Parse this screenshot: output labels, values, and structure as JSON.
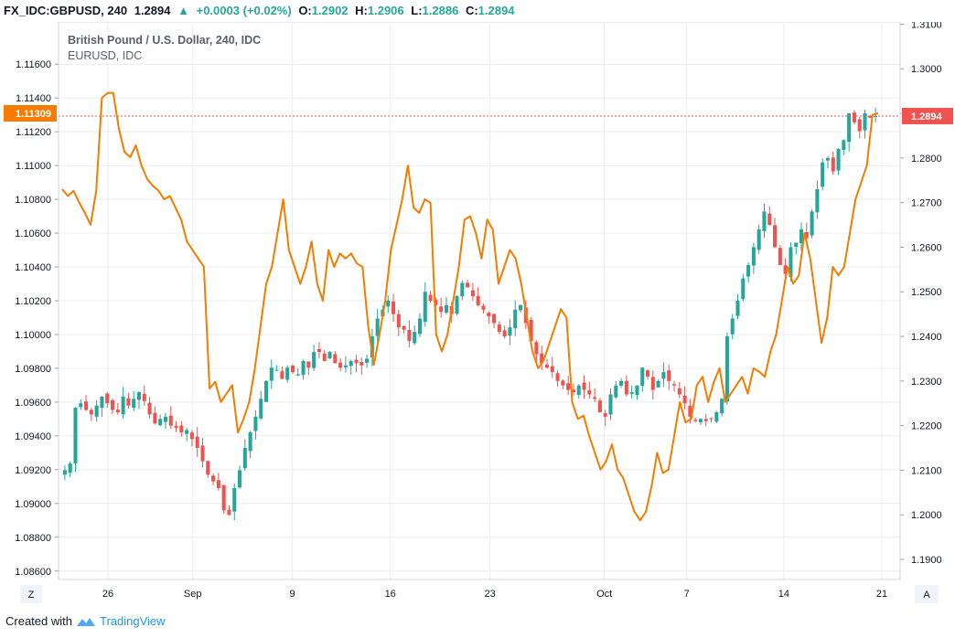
{
  "header": {
    "symbol": "FX_IDC:GBPUSD, 240",
    "last": "1.2894",
    "change": "+0.0003 (+0.02%)",
    "o_label": "O:",
    "o_value": "1.2902",
    "h_label": "H:",
    "h_value": "1.2906",
    "l_label": "L:",
    "l_value": "1.2886",
    "c_label": "C:",
    "c_value": "1.2894"
  },
  "legend": {
    "line1": "British Pound / U.S. Dollar, 240, IDC",
    "line2": "EURUSD, IDC"
  },
  "footer": {
    "created_with": "Created with",
    "brand": "TradingView"
  },
  "axis_buttons": {
    "left": "Z",
    "right": "A"
  },
  "colors": {
    "up": "#26a69a",
    "down": "#ef5350",
    "overlay": "#f57c00",
    "grid": "#e9ecef",
    "price_line": "#ef5350",
    "left_badge": "#f57c00",
    "right_badge": "#ef5350"
  },
  "chart_data": {
    "type": "candlestick",
    "title": "British Pound / U.S. Dollar, 240, IDC",
    "x_ticks": [
      {
        "label": "26",
        "t": 0.06
      },
      {
        "label": "Sep",
        "t": 0.163
      },
      {
        "label": "9",
        "t": 0.284
      },
      {
        "label": "16",
        "t": 0.403
      },
      {
        "label": "23",
        "t": 0.524
      },
      {
        "label": "Oct",
        "t": 0.663
      },
      {
        "label": "7",
        "t": 0.763
      },
      {
        "label": "14",
        "t": 0.881
      },
      {
        "label": "21",
        "t": 1.0
      }
    ],
    "left_axis": {
      "series": "EURUSD",
      "range": [
        1.0855,
        1.1185
      ],
      "ticks": [
        "1.11600",
        "1.11400",
        "1.11200",
        "1.11000",
        "1.10800",
        "1.10600",
        "1.10400",
        "1.10200",
        "1.10000",
        "1.09800",
        "1.09600",
        "1.09400",
        "1.09200",
        "1.09000",
        "1.08800",
        "1.08600"
      ],
      "last_value": "1.11309",
      "last": 1.11309
    },
    "right_axis": {
      "series": "GBPUSD",
      "range": [
        1.1855,
        1.3105
      ],
      "ticks": [
        "1.3100",
        "1.3000",
        "1.2900",
        "1.2800",
        "1.2700",
        "1.2600",
        "1.2500",
        "1.2400",
        "1.2300",
        "1.2200",
        "1.2100",
        "1.2000",
        "1.1900"
      ],
      "last_value": "1.2894",
      "last": 1.2894
    },
    "gbpusd_close_path": [
      1.21,
      1.2115,
      1.224,
      1.225,
      1.2235,
      1.2225,
      1.2245,
      1.2265,
      1.225,
      1.2235,
      1.223,
      1.2265,
      1.2245,
      1.226,
      1.2275,
      1.2255,
      1.2225,
      1.2205,
      1.2215,
      1.222,
      1.22,
      1.2195,
      1.2185,
      1.219,
      1.217,
      1.215,
      1.212,
      1.209,
      1.2075,
      1.206,
      1.201,
      1.2,
      1.206,
      1.21,
      1.215,
      1.2185,
      1.222,
      1.226,
      1.23,
      1.233,
      1.2325,
      1.2305,
      1.233,
      1.232,
      1.2315,
      1.2345,
      1.233,
      1.2365,
      1.2365,
      1.2345,
      1.2365,
      1.234,
      1.233,
      1.2335,
      1.2345,
      1.234,
      1.2335,
      1.235,
      1.24,
      1.244,
      1.246,
      1.248,
      1.245,
      1.242,
      1.2415,
      1.239,
      1.241,
      1.244,
      1.25,
      1.248,
      1.247,
      1.2455,
      1.247,
      1.245,
      1.249,
      1.252,
      1.251,
      1.249,
      1.247,
      1.246,
      1.2445,
      1.243,
      1.241,
      1.24,
      1.242,
      1.246,
      1.247,
      1.243,
      1.239,
      1.236,
      1.234,
      1.233,
      1.232,
      1.23,
      1.229,
      1.228,
      1.2275,
      1.229,
      1.228,
      1.227,
      1.226,
      1.223,
      1.222,
      1.227,
      1.229,
      1.23,
      1.227,
      1.2275,
      1.229,
      1.233,
      1.231,
      1.228,
      1.23,
      1.232,
      1.23,
      1.229,
      1.227,
      1.225,
      1.222,
      1.221,
      1.2215,
      1.221,
      1.2215,
      1.223,
      1.226,
      1.24,
      1.244,
      1.248,
      1.253,
      1.256,
      1.26,
      1.264,
      1.268,
      1.265,
      1.26,
      1.256,
      1.254,
      1.26,
      1.261,
      1.264,
      1.262,
      1.268,
      1.273,
      1.279,
      1.28,
      1.277,
      1.282,
      1.284,
      1.29,
      1.288,
      1.286,
      1.29,
      1.289,
      1.2894
    ],
    "eurusd_path": [
      1.1086,
      1.1082,
      1.1085,
      1.1078,
      1.1072,
      1.1065,
      1.1085,
      1.114,
      1.1143,
      1.1143,
      1.1122,
      1.1108,
      1.1105,
      1.1112,
      1.11,
      1.1092,
      1.1088,
      1.1085,
      1.108,
      1.1082,
      1.1075,
      1.1068,
      1.1055,
      1.105,
      1.1045,
      1.104,
      1.0968,
      1.0972,
      1.096,
      1.0965,
      1.097,
      1.0942,
      1.095,
      1.096,
      1.098,
      1.1005,
      1.103,
      1.104,
      1.106,
      1.108,
      1.105,
      1.104,
      1.103,
      1.104,
      1.1055,
      1.103,
      1.102,
      1.105,
      1.104,
      1.1048,
      1.1045,
      1.1048,
      1.1042,
      1.104,
      1.1005,
      1.0982,
      1.1,
      1.102,
      1.105,
      1.1065,
      1.108,
      1.11,
      1.1075,
      1.1072,
      1.108,
      1.1078,
      1.1,
      1.099,
      1.1,
      1.102,
      1.104,
      1.1068,
      1.107,
      1.106,
      1.1045,
      1.1068,
      1.1062,
      1.103,
      1.104,
      1.105,
      1.1045,
      1.103,
      1.101,
      1.099,
      1.098,
      1.0985,
      1.0995,
      1.1005,
      1.1015,
      1.101,
      1.096,
      1.095,
      1.0952,
      1.094,
      1.093,
      1.092,
      1.0925,
      1.0935,
      1.092,
      1.0915,
      1.0905,
      1.0895,
      1.089,
      1.0895,
      1.091,
      1.093,
      1.0918,
      1.092,
      1.094,
      1.096,
      1.0948,
      1.095,
      1.097,
      1.0975,
      1.096,
      1.0972,
      1.098,
      1.096,
      1.0965,
      1.097,
      1.0975,
      1.0965,
      1.098,
      1.0978,
      1.0975,
      1.099,
      1.1,
      1.102,
      1.104,
      1.103,
      1.1035,
      1.106,
      1.1045,
      1.102,
      1.0995,
      1.101,
      1.104,
      1.1035,
      1.104,
      1.106,
      1.108,
      1.109,
      1.11,
      1.113,
      1.1131
    ]
  }
}
